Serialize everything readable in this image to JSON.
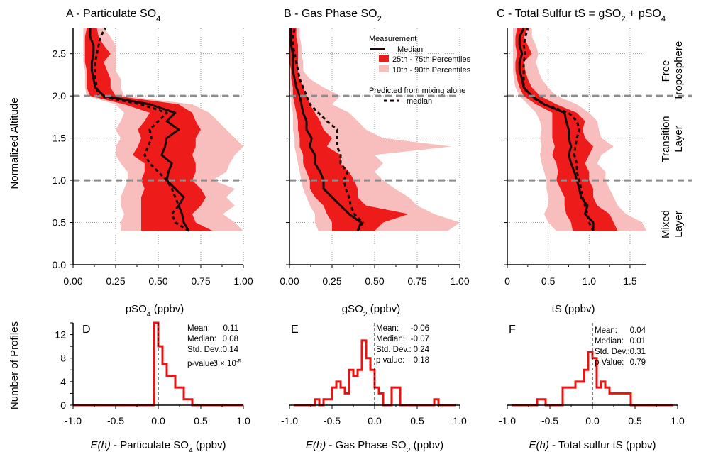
{
  "colors": {
    "p10_90": "#f8bdbd",
    "p25_75": "#ee1b1b",
    "median": "#1a0707",
    "hist": "#ee1111",
    "grid": "#999999",
    "layer_line": "#8c8c8c"
  },
  "legend": {
    "title": "Measurement",
    "median": "Median",
    "p25_75": "25th - 75th Percentiles",
    "p10_90": "10th - 90th Percentiles",
    "predicted_title": "Predicted from mixing alone",
    "predicted_median": "median"
  },
  "layers": [
    "Free",
    "Troposphere",
    "Transition",
    "Layer",
    "Mixed",
    "Layer"
  ],
  "shared_ylabel": "Normalized Altitude",
  "hist_ylabel": "Number of Profiles",
  "chart_data": [
    {
      "id": "A",
      "type": "area",
      "title": "A  -  Particulate SO",
      "title_sub": "4",
      "title_after": "",
      "xlabel": "pSO",
      "xlabel_sub": "4",
      "xlabel_after": "  (ppbv)",
      "xlim": [
        0,
        1
      ],
      "ylim": [
        0,
        2.8
      ],
      "xticks": [
        "0.00",
        "0.25",
        "0.50",
        "0.75",
        "1.00"
      ],
      "yticks": [
        "0.0",
        "0.5",
        "1.0",
        "1.5",
        "2.0",
        "2.5"
      ],
      "layer_lines": [
        1.0,
        2.0
      ],
      "y": [
        0.4,
        0.5,
        0.6,
        0.7,
        0.8,
        0.9,
        1.0,
        1.1,
        1.2,
        1.3,
        1.4,
        1.5,
        1.6,
        1.7,
        1.8,
        1.9,
        2.0,
        2.1,
        2.2,
        2.3,
        2.4,
        2.5,
        2.6,
        2.7,
        2.8
      ],
      "median": [
        0.68,
        0.65,
        0.64,
        0.62,
        0.65,
        0.6,
        0.55,
        0.56,
        0.58,
        0.52,
        0.54,
        0.55,
        0.62,
        0.55,
        0.6,
        0.45,
        0.18,
        0.13,
        0.12,
        0.11,
        0.11,
        0.12,
        0.12,
        0.1,
        0.1
      ],
      "p25": [
        0.4,
        0.4,
        0.4,
        0.4,
        0.4,
        0.42,
        0.4,
        0.42,
        0.42,
        0.35,
        0.38,
        0.4,
        0.38,
        0.42,
        0.45,
        0.3,
        0.1,
        0.08,
        0.08,
        0.08,
        0.07,
        0.07,
        0.07,
        0.07,
        0.08
      ],
      "p75": [
        0.82,
        0.72,
        0.7,
        0.75,
        0.78,
        0.75,
        0.7,
        0.72,
        0.72,
        0.7,
        0.72,
        0.72,
        0.75,
        0.72,
        0.7,
        0.62,
        0.25,
        0.22,
        0.22,
        0.2,
        0.18,
        0.22,
        0.18,
        0.15,
        0.14
      ],
      "p10": [
        0.28,
        0.28,
        0.3,
        0.28,
        0.28,
        0.3,
        0.32,
        0.32,
        0.28,
        0.25,
        0.25,
        0.28,
        0.25,
        0.28,
        0.3,
        0.25,
        0.08,
        0.07,
        0.07,
        0.07,
        0.06,
        0.06,
        0.06,
        0.06,
        0.06
      ],
      "p90": [
        1.0,
        0.95,
        0.88,
        0.95,
        0.9,
        0.95,
        0.82,
        0.9,
        0.92,
        0.95,
        1.0,
        0.95,
        0.9,
        0.85,
        0.8,
        0.7,
        0.3,
        0.28,
        0.28,
        0.25,
        0.25,
        0.25,
        0.25,
        0.22,
        0.18
      ],
      "predicted": [
        0.68,
        0.6,
        0.58,
        0.62,
        0.6,
        0.58,
        0.55,
        0.5,
        0.45,
        0.42,
        0.44,
        0.46,
        0.45,
        0.5,
        0.55,
        0.4,
        0.15,
        0.14,
        0.13,
        0.13,
        0.13,
        0.14,
        0.15,
        0.16,
        0.19
      ]
    },
    {
      "id": "B",
      "type": "area",
      "title": "B - Gas Phase SO",
      "title_sub": "2",
      "title_after": "",
      "xlabel": "gSO",
      "xlabel_sub": "2",
      "xlabel_after": " (ppbv)",
      "xlim": [
        0,
        1
      ],
      "ylim": [
        0,
        2.8
      ],
      "xticks": [
        "0.00",
        "0.25",
        "0.50",
        "0.75",
        "1.00"
      ],
      "yticks": [],
      "layer_lines": [
        1.0,
        2.0
      ],
      "y": [
        0.4,
        0.5,
        0.6,
        0.7,
        0.8,
        0.9,
        1.0,
        1.1,
        1.2,
        1.3,
        1.4,
        1.5,
        1.6,
        1.7,
        1.8,
        1.9,
        2.0,
        2.1,
        2.2,
        2.3,
        2.4,
        2.5,
        2.6,
        2.7,
        2.8
      ],
      "median": [
        0.4,
        0.42,
        0.35,
        0.3,
        0.25,
        0.2,
        0.2,
        0.18,
        0.15,
        0.15,
        0.12,
        0.13,
        0.1,
        0.1,
        0.08,
        0.07,
        0.06,
        0.04,
        0.03,
        0.02,
        0.02,
        0.02,
        0.01,
        0.01,
        0.01
      ],
      "p25": [
        0.25,
        0.25,
        0.22,
        0.2,
        0.15,
        0.12,
        0.12,
        0.1,
        0.08,
        0.08,
        0.06,
        0.06,
        0.05,
        0.05,
        0.04,
        0.03,
        0.02,
        0.02,
        0.01,
        0.01,
        0.0,
        0.0,
        0.0,
        0.0,
        0.0
      ],
      "p75": [
        0.5,
        0.55,
        0.7,
        0.45,
        0.4,
        0.4,
        0.38,
        0.35,
        0.3,
        0.3,
        0.22,
        0.25,
        0.2,
        0.18,
        0.15,
        0.12,
        0.1,
        0.08,
        0.06,
        0.05,
        0.05,
        0.05,
        0.05,
        0.04,
        0.04
      ],
      "p10": [
        0.17,
        0.15,
        0.15,
        0.12,
        0.1,
        0.08,
        0.07,
        0.06,
        0.05,
        0.04,
        0.03,
        0.03,
        0.02,
        0.02,
        0.02,
        0.01,
        0.01,
        0.0,
        0.0,
        0.0,
        0.0,
        0.0,
        0.0,
        0.0,
        0.0
      ],
      "p90": [
        0.93,
        1.0,
        0.85,
        0.75,
        0.7,
        0.62,
        0.55,
        0.5,
        0.55,
        0.5,
        0.95,
        0.55,
        0.45,
        0.4,
        0.35,
        0.25,
        0.3,
        0.2,
        0.12,
        0.08,
        0.08,
        0.07,
        0.07,
        0.06,
        0.06
      ],
      "predicted": [
        0.4,
        0.43,
        0.38,
        0.36,
        0.35,
        0.33,
        0.32,
        0.34,
        0.3,
        0.3,
        0.28,
        0.28,
        0.28,
        0.22,
        0.17,
        0.12,
        0.1,
        0.08,
        0.06,
        0.05,
        0.04,
        0.03,
        0.02,
        0.02,
        0.03
      ]
    },
    {
      "id": "C",
      "type": "area",
      "title": "C - Total Sulfur tS = gSO",
      "title_sub": "2",
      "title_after": " + pSO",
      "title_sub2": "4",
      "xlabel": "tS",
      "xlabel_sub": "",
      "xlabel_after": " (ppbv)",
      "xlim": [
        0,
        1.7
      ],
      "ylim": [
        0,
        2.8
      ],
      "xticks": [
        "0",
        "0.5",
        "1.0",
        "1.5"
      ],
      "xtick_values": [
        0,
        0.5,
        1.0,
        1.5
      ],
      "yticks": [],
      "layer_lines": [
        1.0,
        2.0
      ],
      "y": [
        0.4,
        0.5,
        0.6,
        0.7,
        0.8,
        0.9,
        1.0,
        1.1,
        1.2,
        1.3,
        1.4,
        1.5,
        1.6,
        1.7,
        1.8,
        1.9,
        2.0,
        2.1,
        2.2,
        2.3,
        2.4,
        2.5,
        2.6,
        2.7,
        2.8
      ],
      "median": [
        1.05,
        1.05,
        0.95,
        0.98,
        0.9,
        0.88,
        0.85,
        0.82,
        0.78,
        0.75,
        0.78,
        0.75,
        0.75,
        0.72,
        0.7,
        0.45,
        0.3,
        0.2,
        0.18,
        0.15,
        0.15,
        0.18,
        0.15,
        0.15,
        0.2
      ],
      "p25": [
        0.8,
        0.78,
        0.72,
        0.7,
        0.7,
        0.65,
        0.6,
        0.62,
        0.6,
        0.55,
        0.58,
        0.55,
        0.55,
        0.55,
        0.55,
        0.35,
        0.2,
        0.15,
        0.12,
        0.1,
        0.1,
        0.12,
        0.1,
        0.1,
        0.12
      ],
      "p75": [
        1.35,
        1.3,
        1.25,
        1.1,
        1.05,
        1.05,
        1.0,
        1.0,
        0.95,
        1.0,
        1.05,
        0.95,
        0.92,
        0.95,
        0.85,
        0.6,
        0.4,
        0.3,
        0.25,
        0.22,
        0.2,
        0.3,
        0.25,
        0.2,
        0.25
      ],
      "p10": [
        0.6,
        0.5,
        0.45,
        0.5,
        0.5,
        0.48,
        0.48,
        0.45,
        0.42,
        0.4,
        0.42,
        0.4,
        0.42,
        0.4,
        0.35,
        0.25,
        0.15,
        0.1,
        0.08,
        0.07,
        0.07,
        0.07,
        0.07,
        0.07,
        0.07
      ],
      "p90": [
        1.7,
        1.65,
        1.45,
        1.35,
        1.3,
        1.25,
        1.2,
        1.2,
        1.1,
        1.15,
        1.3,
        1.15,
        1.12,
        1.1,
        1.0,
        0.85,
        0.6,
        0.5,
        0.42,
        0.38,
        0.35,
        0.38,
        0.35,
        0.3,
        0.3
      ],
      "predicted": [
        1.05,
        1.0,
        0.98,
        0.95,
        0.92,
        0.9,
        0.88,
        0.85,
        0.85,
        0.82,
        0.83,
        0.85,
        0.88,
        0.85,
        0.75,
        0.45,
        0.28,
        0.2,
        0.2,
        0.2,
        0.2,
        0.22,
        0.2,
        0.22,
        0.25
      ]
    },
    {
      "id": "D",
      "type": "bar",
      "title": "D",
      "xlabel": "E(h)",
      "xlabel_rest": " - Particulate SO",
      "xlabel_sub": "4",
      "xlabel_after": "  (ppbv)",
      "xlim": [
        -1,
        1
      ],
      "ylim": [
        0,
        14
      ],
      "xticks": [
        "-1.0",
        "-0.5",
        "0.0",
        "0.5",
        "1.0"
      ],
      "yticks": [
        "0",
        "4",
        "8",
        "12"
      ],
      "ytick_values": [
        0,
        4,
        8,
        12
      ],
      "bin_edges": [
        -1.0,
        -0.05,
        0.0,
        0.05,
        0.1,
        0.15,
        0.2,
        0.25,
        0.3,
        0.35,
        0.4,
        0.45,
        1.0
      ],
      "counts": [
        0,
        14,
        10,
        7,
        5,
        5,
        3,
        3,
        1,
        1,
        0,
        0
      ],
      "stats": [
        [
          "Mean:",
          "0.11"
        ],
        [
          "Median:",
          "0.08"
        ],
        [
          "Std. Dev.:",
          "0.14"
        ],
        [
          "p-value:",
          "3 × 10",
          "-5"
        ]
      ]
    },
    {
      "id": "E",
      "type": "bar",
      "title": "E",
      "xlabel": "E(h)",
      "xlabel_rest": " - Gas Phase SO",
      "xlabel_sub": "2",
      "xlabel_after": "  (ppbv)",
      "xlim": [
        -1,
        1
      ],
      "ylim": [
        0,
        14
      ],
      "xticks": [
        "-1.0",
        "-0.5",
        "0.0",
        "0.5",
        "1.0"
      ],
      "yticks": [],
      "bin_edges": [
        -0.95,
        -0.7,
        -0.65,
        -0.6,
        -0.5,
        -0.45,
        -0.4,
        -0.35,
        -0.3,
        -0.25,
        -0.2,
        -0.15,
        -0.1,
        -0.05,
        0.0,
        0.05,
        0.1,
        0.15,
        0.2,
        0.25,
        0.3,
        0.35,
        0.7,
        0.75,
        0.8,
        0.85,
        0.95
      ],
      "counts": [
        0,
        1,
        0,
        1,
        3,
        4,
        3,
        2,
        6,
        5,
        6,
        11,
        8,
        6,
        3,
        2,
        0,
        0,
        3,
        3,
        0,
        0,
        1,
        0,
        0,
        0
      ],
      "stats": [
        [
          "Mean:",
          "-0.06"
        ],
        [
          "Median:",
          "-0.07"
        ],
        [
          "Std. Dev.:",
          "0.24"
        ],
        [
          "p value:",
          "0.18"
        ]
      ]
    },
    {
      "id": "F",
      "type": "bar",
      "title": "F",
      "xlabel": "E(h)",
      "xlabel_rest": " - Total sulfur tS",
      "xlabel_sub": "",
      "xlabel_after": "  (ppbv)",
      "xlim": [
        -1,
        1
      ],
      "ylim": [
        0,
        14
      ],
      "xticks": [
        "-1.0",
        "-0.5",
        "0.0",
        "0.5",
        "1.0"
      ],
      "yticks": [],
      "bin_edges": [
        -0.95,
        -0.65,
        -0.55,
        -0.45,
        -0.35,
        -0.2,
        -0.1,
        -0.05,
        0.0,
        0.05,
        0.1,
        0.15,
        0.2,
        0.3,
        0.35,
        0.45,
        0.55,
        0.95
      ],
      "counts": [
        0,
        1,
        0,
        0,
        3,
        4,
        6,
        9,
        8,
        3,
        4,
        3,
        2,
        2,
        2,
        0,
        0
      ],
      "stats": [
        [
          "Mean:",
          "0.04"
        ],
        [
          "Median:",
          "0.01"
        ],
        [
          "Std. Dev.:",
          "0.31"
        ],
        [
          "p Value:",
          "0.79"
        ]
      ]
    }
  ]
}
